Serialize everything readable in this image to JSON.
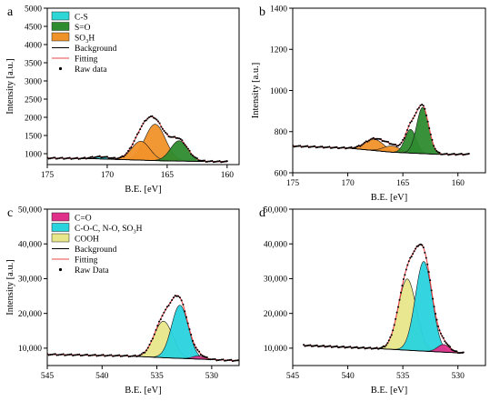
{
  "figure": {
    "background": "#ffffff"
  },
  "colors": {
    "cs": "#2fd6d6",
    "so": "#2e8b2e",
    "so3h": "#f0922a",
    "co": "#e0308a",
    "coc": "#29d3de",
    "cooh": "#e8e68a",
    "background_line": "#000000",
    "fitting_line": "#e8454a",
    "raw": "#000000"
  },
  "chart_data": [
    {
      "panel": "a",
      "type": "area",
      "xlabel": "B.E. [eV]",
      "ylabel": "Intensity [a.u.]",
      "xlim": [
        175,
        159
      ],
      "ylim": [
        700,
        5000
      ],
      "x_reversed": true,
      "xticks": [
        175,
        170,
        165,
        160
      ],
      "xtick_labels": [
        "175",
        "170",
        "165",
        "160"
      ],
      "yticks": [
        1000,
        1500,
        2000,
        2500,
        3000,
        3500,
        4000,
        4500,
        5000
      ],
      "ytick_labels": [
        "1000",
        "1500",
        "2000",
        "2500",
        "3000",
        "3500",
        "4000",
        "4500",
        "5000"
      ],
      "data_range": [
        175,
        160
      ],
      "background": {
        "x": [
          175,
          171,
          168,
          165,
          160
        ],
        "y": [
          880,
          860,
          830,
          800,
          780
        ]
      },
      "components": [
        {
          "name": "C-S",
          "color_key": "cs",
          "center": 170.5,
          "height": 60,
          "fwhm": 1.8
        },
        {
          "name": "SO3H",
          "color_key": "so3h",
          "center": 166.0,
          "height": 1000,
          "fwhm": 2.0
        },
        {
          "name": "SO3H",
          "color_key": "so3h",
          "center": 167.2,
          "height": 520,
          "fwhm": 1.8
        },
        {
          "name": "S=O",
          "color_key": "so",
          "center": 164.0,
          "height": 560,
          "fwhm": 1.7
        }
      ],
      "legend": {
        "position": "top-left",
        "items": [
          {
            "kind": "patch",
            "color_key": "cs",
            "label": "C-S"
          },
          {
            "kind": "patch",
            "color_key": "so",
            "label": "S=O"
          },
          {
            "kind": "patch",
            "color_key": "so3h",
            "label": "SO",
            "sub": "3",
            "tail": "H"
          },
          {
            "kind": "line",
            "color_key": "background_line",
            "label": "Background"
          },
          {
            "kind": "line",
            "color_key": "fitting_line",
            "label": "Fitting"
          },
          {
            "kind": "dot",
            "color_key": "raw",
            "label": "Raw data"
          }
        ]
      }
    },
    {
      "panel": "b",
      "type": "area",
      "xlabel": "B.E. [eV]",
      "ylabel": "Intensity [a.u.]",
      "xlim": [
        175,
        157.5
      ],
      "ylim": [
        600,
        1400
      ],
      "x_reversed": true,
      "xticks": [
        175,
        170,
        165,
        160
      ],
      "xtick_labels": [
        "175",
        "170",
        "165",
        "160"
      ],
      "yticks": [
        600,
        800,
        1000,
        1200,
        1400
      ],
      "ytick_labels": [
        "600",
        "800",
        "1000",
        "1200",
        "1400"
      ],
      "data_range": [
        175,
        159
      ],
      "background": {
        "x": [
          175,
          170,
          166,
          162,
          159
        ],
        "y": [
          730,
          720,
          700,
          690,
          690
        ]
      },
      "components": [
        {
          "name": "SO3H",
          "color_key": "so3h",
          "center": 167.6,
          "height": 55,
          "fwhm": 2.0
        },
        {
          "name": "SO3H",
          "color_key": "so3h",
          "center": 166.0,
          "height": 30,
          "fwhm": 1.8
        },
        {
          "name": "S=O",
          "color_key": "so",
          "center": 164.3,
          "height": 115,
          "fwhm": 1.2
        },
        {
          "name": "S=O",
          "color_key": "so",
          "center": 163.2,
          "height": 225,
          "fwhm": 1.3
        }
      ],
      "legend": null
    },
    {
      "panel": "c",
      "type": "area",
      "xlabel": "B.E. [eV]",
      "ylabel": "Intensity [a.u.]",
      "xlim": [
        545,
        527.5
      ],
      "ylim": [
        5000,
        50000
      ],
      "x_reversed": true,
      "xticks": [
        545,
        540,
        535,
        530
      ],
      "xtick_labels": [
        "545",
        "540",
        "535",
        "530"
      ],
      "yticks": [
        10000,
        20000,
        30000,
        40000,
        50000
      ],
      "ytick_labels": [
        "10,000",
        "20,000",
        "30,000",
        "40,000",
        "50,000"
      ],
      "data_range": [
        545,
        527.5
      ],
      "background": {
        "x": [
          545,
          538,
          534,
          530,
          527.5
        ],
        "y": [
          8200,
          7800,
          7200,
          6700,
          6400
        ]
      },
      "components": [
        {
          "name": "COOH",
          "color_key": "cooh",
          "center": 534.4,
          "height": 10500,
          "fwhm": 2.0
        },
        {
          "name": "C-O-C, N-O, SO3H",
          "color_key": "coc",
          "center": 532.9,
          "height": 15300,
          "fwhm": 1.8
        },
        {
          "name": "C=O",
          "color_key": "co",
          "center": 531.2,
          "height": 900,
          "fwhm": 1.3
        }
      ],
      "legend": {
        "position": "top-left",
        "items": [
          {
            "kind": "patch",
            "color_key": "co",
            "label": "C=O"
          },
          {
            "kind": "patch",
            "color_key": "coc",
            "label": "C-O-C, N-O, SO",
            "sub": "3",
            "tail": "H"
          },
          {
            "kind": "patch",
            "color_key": "cooh",
            "label": "COOH"
          },
          {
            "kind": "line",
            "color_key": "background_line",
            "label": "Background"
          },
          {
            "kind": "line",
            "color_key": "fitting_line",
            "label": "Fitting"
          },
          {
            "kind": "dot",
            "color_key": "raw",
            "label": "Raw Data"
          }
        ]
      }
    },
    {
      "panel": "d",
      "type": "area",
      "xlabel": "B.E. [eV]",
      "ylabel": "",
      "xlim": [
        545,
        527.5
      ],
      "ylim": [
        5000,
        50000
      ],
      "x_reversed": true,
      "xticks": [
        545,
        540,
        535,
        530
      ],
      "xtick_labels": [
        "545",
        "540",
        "535",
        "530"
      ],
      "yticks": [
        10000,
        20000,
        30000,
        40000,
        50000
      ],
      "ytick_labels": [
        "10,000",
        "20,000",
        "30,000",
        "40,000",
        "50,000"
      ],
      "data_range": [
        544,
        529.5
      ],
      "background": {
        "x": [
          544,
          538,
          534,
          531,
          529.5
        ],
        "y": [
          10800,
          10000,
          9300,
          8800,
          8600
        ]
      },
      "components": [
        {
          "name": "COOH",
          "color_key": "cooh",
          "center": 534.6,
          "height": 20500,
          "fwhm": 1.9
        },
        {
          "name": "C-O-C, N-O, SO3H",
          "color_key": "coc",
          "center": 533.1,
          "height": 25800,
          "fwhm": 1.8
        },
        {
          "name": "C=O",
          "color_key": "co",
          "center": 531.3,
          "height": 2200,
          "fwhm": 1.3
        }
      ],
      "legend": null
    }
  ]
}
